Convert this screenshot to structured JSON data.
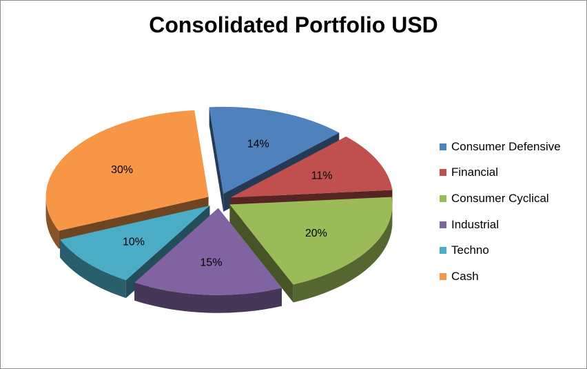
{
  "chart_data": {
    "type": "pie",
    "title": "Consolidated Portfolio USD",
    "style": "3d-exploded",
    "legend_position": "right",
    "slices": [
      {
        "name": "Consumer Defensive",
        "value": 14,
        "label": "14%",
        "color": "#4F81BD"
      },
      {
        "name": "Financial",
        "value": 11,
        "label": "11%",
        "color": "#C0504D"
      },
      {
        "name": "Consumer Cyclical",
        "value": 20,
        "label": "20%",
        "color": "#9BBB59"
      },
      {
        "name": "Industrial",
        "value": 15,
        "label": "15%",
        "color": "#8064A2"
      },
      {
        "name": "Techno",
        "value": 10,
        "label": "10%",
        "color": "#4BACC6"
      },
      {
        "name": "Cash",
        "value": 30,
        "label": "30%",
        "color": "#F79646"
      }
    ]
  }
}
